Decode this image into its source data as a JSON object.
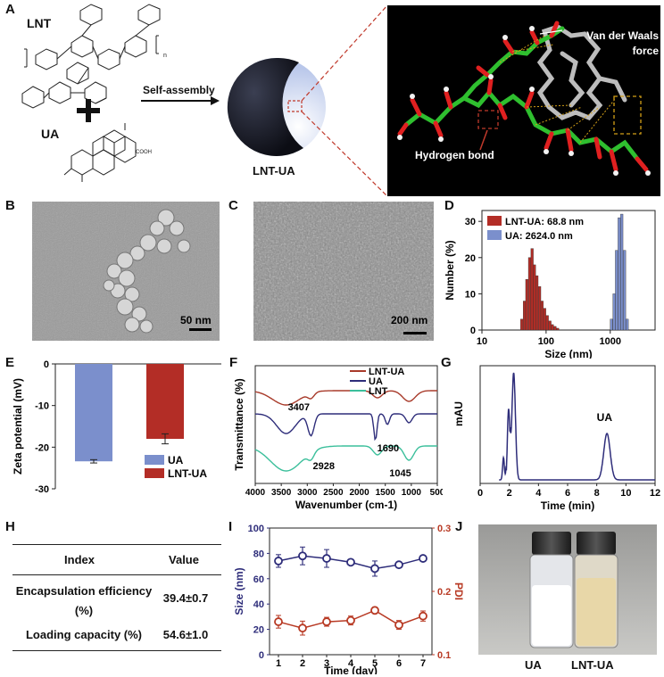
{
  "panelA": {
    "label": "A",
    "lnt": "LNT",
    "ua": "UA",
    "arrow_text": "Self-assembly",
    "sphere_label": "LNT-UA",
    "vdw": "Van der Waals force",
    "hbond": "Hydrogen bond",
    "cooh": "COOH",
    "colors": {
      "panel_bg": "#000000",
      "carbon": "#2fbf2f",
      "oxygen": "#e02020",
      "hydrogen": "#f2f2f2",
      "ua_grey": "#c8c8c8",
      "dash": "#d4a017",
      "callout": "#c0392b"
    }
  },
  "panelB": {
    "label": "B",
    "scale": "50 nm"
  },
  "panelC": {
    "label": "C",
    "scale": "200 nm"
  },
  "panelD": {
    "label": "D",
    "chart_data": {
      "type": "bar",
      "xlabel": "Size (nm)",
      "ylabel": "Number (%)",
      "xscale": "log",
      "xlim": [
        10,
        5000
      ],
      "ylim": [
        0,
        33
      ],
      "xticks": [
        "10",
        "100",
        "1000"
      ],
      "yticks": [
        "0",
        "10",
        "20",
        "30"
      ],
      "legend_position": "top-left",
      "series": [
        {
          "name": "LNT-UA: 68.8 nm",
          "color": "#b32d26",
          "x": [
            40,
            44,
            48,
            53,
            58,
            63,
            69,
            76,
            83,
            91,
            100,
            110,
            120,
            132,
            145
          ],
          "values": [
            3,
            8,
            14,
            20,
            22.5,
            18,
            15,
            12,
            8,
            6,
            4,
            2.5,
            1.5,
            1,
            0.5
          ]
        },
        {
          "name": "UA: 2624.0 nm",
          "color": "#7b8fcc",
          "x": [
            1000,
            1100,
            1200,
            1320,
            1450,
            1600,
            1760
          ],
          "values": [
            3,
            10,
            22,
            31,
            32,
            22,
            3
          ]
        }
      ]
    }
  },
  "panelE": {
    "label": "E",
    "chart_data": {
      "type": "bar",
      "ylabel": "Zeta potential (mV)",
      "ylim": [
        -30,
        0
      ],
      "yticks": [
        "0",
        "-10",
        "-20",
        "-30"
      ],
      "legend_position": "bottom-right",
      "categories": [
        "UA",
        "LNT-UA"
      ],
      "values": [
        -23.4,
        -18
      ],
      "errors": [
        0.4,
        1.2
      ],
      "colors": [
        "#7b8fcc",
        "#b32d26"
      ]
    }
  },
  "panelF": {
    "label": "F",
    "chart_data": {
      "type": "line",
      "xlabel": "Wavenumber (cm-1)",
      "ylabel": "Transmittance (%)",
      "xlim": [
        4000,
        500
      ],
      "xticks": [
        "4000",
        "3500",
        "3000",
        "2500",
        "2000",
        "1500",
        "1000",
        "500"
      ],
      "annotations": [
        "3407",
        "1690",
        "2928",
        "1045"
      ],
      "series": [
        {
          "name": "LNT-UA",
          "color": "#a83a2a"
        },
        {
          "name": "UA",
          "color": "#2e2d7a"
        },
        {
          "name": "LNT",
          "color": "#3bbf9b"
        }
      ]
    }
  },
  "panelG": {
    "label": "G",
    "chart_data": {
      "type": "line",
      "xlabel": "Time (min)",
      "ylabel": "mAU",
      "xlim": [
        0,
        12
      ],
      "xticks": [
        "0",
        "2",
        "4",
        "6",
        "8",
        "10",
        "12"
      ],
      "annotation": "UA",
      "color": "#2e2d7a"
    }
  },
  "panelH": {
    "label": "H",
    "headers": [
      "Index",
      "Value"
    ],
    "rows": [
      {
        "index": "Encapsulation efficiency (%)",
        "value": "39.4±0.7"
      },
      {
        "index": "Loading capacity (%)",
        "value": "54.6±1.0"
      }
    ]
  },
  "panelI": {
    "label": "I",
    "chart_data": {
      "type": "line",
      "xlabel": "Time (day)",
      "ylabel_left": "Size (nm)",
      "ylabel_right": "PDI",
      "x": [
        1,
        2,
        3,
        4,
        5,
        6,
        7
      ],
      "xticks": [
        "1",
        "2",
        "3",
        "4",
        "5",
        "6",
        "7"
      ],
      "ylim_left": [
        0,
        100
      ],
      "yticks_left": [
        "0",
        "20",
        "40",
        "60",
        "80",
        "100"
      ],
      "ylim_right": [
        0.1,
        0.3
      ],
      "yticks_right": [
        "0.1",
        "0.2",
        "0.3"
      ],
      "series": [
        {
          "name": "Size",
          "axis": "left",
          "color": "#2e2d7a",
          "values": [
            74,
            78,
            76,
            73,
            68,
            71,
            76
          ],
          "errors": [
            5,
            7,
            7,
            2,
            6,
            2,
            2
          ]
        },
        {
          "name": "PDI",
          "axis": "right",
          "color": "#b83a24",
          "values": [
            0.152,
            0.142,
            0.152,
            0.154,
            0.17,
            0.147,
            0.161
          ],
          "errors": [
            0.01,
            0.011,
            0.007,
            0.007,
            0.005,
            0.007,
            0.008
          ]
        }
      ]
    }
  },
  "panelJ": {
    "label": "J",
    "left": "UA",
    "right": "LNT-UA"
  }
}
